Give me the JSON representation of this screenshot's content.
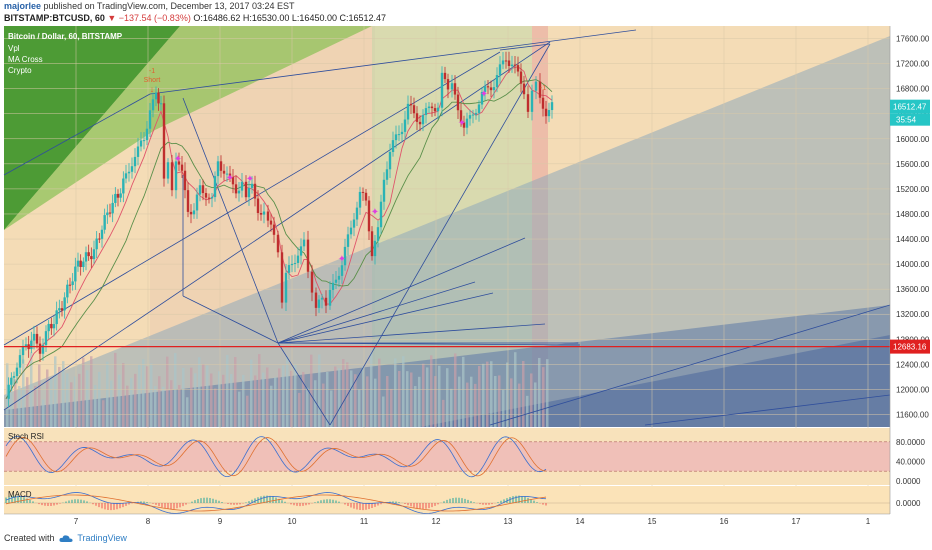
{
  "header": {
    "author": "majorlee",
    "publish_text": "published on TradingView.com, December 13, 2017 03:24 EST",
    "symbol": "BITSTAMP:BTCUSD, 60",
    "change": "▼ −137.54 (−0.83%)",
    "ohlc": "O:16486.62 H:16530.00 L:16450.00 C:16512.47",
    "last_price": "16512.47"
  },
  "legend": {
    "title": "Bitcoin / Dollar, 60, BITSTAMP",
    "items": [
      "Vpl",
      "MA Cross",
      "Crypto"
    ]
  },
  "price_labels": {
    "last": "16512.47",
    "countdown": "35:54",
    "horizontal_line": "12683.16",
    "short_marker_top": "-1",
    "short_marker": "Short"
  },
  "footer": {
    "created_with": "Created with",
    "brand": "TradingView"
  },
  "colors": {
    "background": "#ffffff",
    "bull": "#2ab3b5",
    "bear": "#bf2e2e",
    "trendline": "#2f4e9c",
    "support_line": "#e02020",
    "stoch_band": "#f0c0b8",
    "stoch_bg": "#f8e2bb",
    "macd_bg": "#fbe3b8"
  },
  "chart_data": [
    {
      "type": "candlestick",
      "title": "Bitcoin / Dollar, 60, BITSTAMP",
      "x_ticks": [
        "7",
        "8",
        "9",
        "10",
        "11",
        "12",
        "13",
        "14",
        "15",
        "16",
        "17",
        "1"
      ],
      "ylim": [
        11400,
        17800
      ],
      "y_ticks": [
        11600,
        12000,
        12400,
        12800,
        13200,
        13600,
        14000,
        14400,
        14800,
        15200,
        15600,
        16000,
        16400,
        16800,
        17200,
        17600
      ],
      "price_path": [
        [
          0,
          11850
        ],
        [
          8,
          12300
        ],
        [
          14,
          12500
        ],
        [
          20,
          12700
        ],
        [
          28,
          12800
        ],
        [
          34,
          12650
        ],
        [
          40,
          12900
        ],
        [
          48,
          13100
        ],
        [
          56,
          13350
        ],
        [
          64,
          13700
        ],
        [
          72,
          14000
        ],
        [
          80,
          14100
        ],
        [
          88,
          14200
        ],
        [
          96,
          14600
        ],
        [
          104,
          14900
        ],
        [
          112,
          15100
        ],
        [
          120,
          15400
        ],
        [
          126,
          15650
        ],
        [
          132,
          15800
        ],
        [
          138,
          16000
        ],
        [
          144,
          16500
        ],
        [
          150,
          16650
        ],
        [
          155,
          16600
        ],
        [
          158,
          15300
        ],
        [
          162,
          15600
        ],
        [
          166,
          15200
        ],
        [
          170,
          15700
        ],
        [
          176,
          15400
        ],
        [
          182,
          14900
        ],
        [
          188,
          14850
        ],
        [
          194,
          15200
        ],
        [
          200,
          15150
        ],
        [
          206,
          15000
        ],
        [
          212,
          15650
        ],
        [
          218,
          15500
        ],
        [
          224,
          15300
        ],
        [
          230,
          15200
        ],
        [
          236,
          15300
        ],
        [
          240,
          15100
        ],
        [
          246,
          15200
        ],
        [
          252,
          14900
        ],
        [
          258,
          14800
        ],
        [
          262,
          14700
        ],
        [
          268,
          14400
        ],
        [
          272,
          14100
        ],
        [
          276,
          13300
        ],
        [
          280,
          13800
        ],
        [
          286,
          14000
        ],
        [
          292,
          14200
        ],
        [
          298,
          14300
        ],
        [
          302,
          13800
        ],
        [
          306,
          13500
        ],
        [
          310,
          13300
        ],
        [
          316,
          13400
        ],
        [
          320,
          13250
        ],
        [
          324,
          13500
        ],
        [
          330,
          13800
        ],
        [
          336,
          14000
        ],
        [
          342,
          14400
        ],
        [
          348,
          14800
        ],
        [
          354,
          15100
        ],
        [
          360,
          15000
        ],
        [
          366,
          14200
        ],
        [
          372,
          14500
        ],
        [
          378,
          15400
        ],
        [
          384,
          15800
        ],
        [
          390,
          16000
        ],
        [
          396,
          16200
        ],
        [
          402,
          16500
        ],
        [
          408,
          16400
        ],
        [
          414,
          16300
        ],
        [
          420,
          16400
        ],
        [
          426,
          16550
        ],
        [
          432,
          16500
        ],
        [
          436,
          17100
        ],
        [
          442,
          16700
        ],
        [
          446,
          16800
        ],
        [
          452,
          16500
        ],
        [
          458,
          16200
        ],
        [
          464,
          16300
        ],
        [
          470,
          16500
        ],
        [
          476,
          16700
        ],
        [
          482,
          16800
        ],
        [
          488,
          16900
        ],
        [
          494,
          17100
        ],
        [
          500,
          17300
        ],
        [
          506,
          17200
        ],
        [
          512,
          17000
        ],
        [
          518,
          16800
        ],
        [
          522,
          16500
        ],
        [
          526,
          16800
        ],
        [
          530,
          16900
        ],
        [
          534,
          16600
        ],
        [
          540,
          16450
        ],
        [
          546,
          16512
        ]
      ],
      "horizontal_lines": [
        12683.16
      ]
    },
    {
      "type": "line",
      "title": "Stoch RSI",
      "y_ticks": [
        "80.0000",
        "40.0000",
        "0.0000"
      ],
      "ylim": [
        0,
        100
      ]
    },
    {
      "type": "line",
      "title": "MACD",
      "y_ticks": [
        "0.0000"
      ]
    }
  ]
}
